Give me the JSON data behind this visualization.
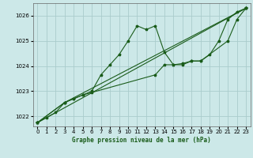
{
  "title": "Graphe pression niveau de la mer (hPa)",
  "background_color": "#cce8e8",
  "grid_color": "#aacccc",
  "line_color": "#1a5c1a",
  "marker_color": "#1a5c1a",
  "xlim": [
    -0.5,
    23.5
  ],
  "ylim": [
    1021.6,
    1026.5
  ],
  "yticks": [
    1022,
    1023,
    1024,
    1025,
    1026
  ],
  "xticks": [
    0,
    1,
    2,
    3,
    4,
    5,
    6,
    7,
    8,
    9,
    10,
    11,
    12,
    13,
    14,
    15,
    16,
    17,
    18,
    19,
    20,
    21,
    22,
    23
  ],
  "series1": {
    "x": [
      0,
      1,
      2,
      3,
      4,
      5,
      6,
      7,
      8,
      9,
      10,
      11,
      12,
      13,
      14,
      15,
      16,
      17,
      18,
      19,
      20,
      21,
      22,
      23
    ],
    "y": [
      1021.75,
      1021.95,
      1022.15,
      1022.55,
      1022.7,
      1022.85,
      1023.0,
      1023.65,
      1024.05,
      1024.45,
      1025.0,
      1025.6,
      1025.45,
      1025.6,
      1024.55,
      1024.05,
      1024.05,
      1024.2,
      1024.2,
      1024.45,
      1025.0,
      1025.85,
      1026.15,
      1026.3
    ]
  },
  "series2": {
    "x": [
      0,
      3,
      4,
      5,
      6,
      13,
      14,
      15,
      16,
      17,
      18,
      21,
      22,
      23
    ],
    "y": [
      1021.75,
      1022.55,
      1022.7,
      1022.85,
      1022.95,
      1023.65,
      1024.05,
      1024.05,
      1024.1,
      1024.2,
      1024.2,
      1025.0,
      1025.85,
      1026.3
    ]
  },
  "series3": {
    "x": [
      0,
      23
    ],
    "y": [
      1021.75,
      1026.3
    ]
  },
  "series4": {
    "x": [
      0,
      3,
      23
    ],
    "y": [
      1021.75,
      1022.55,
      1026.3
    ]
  }
}
